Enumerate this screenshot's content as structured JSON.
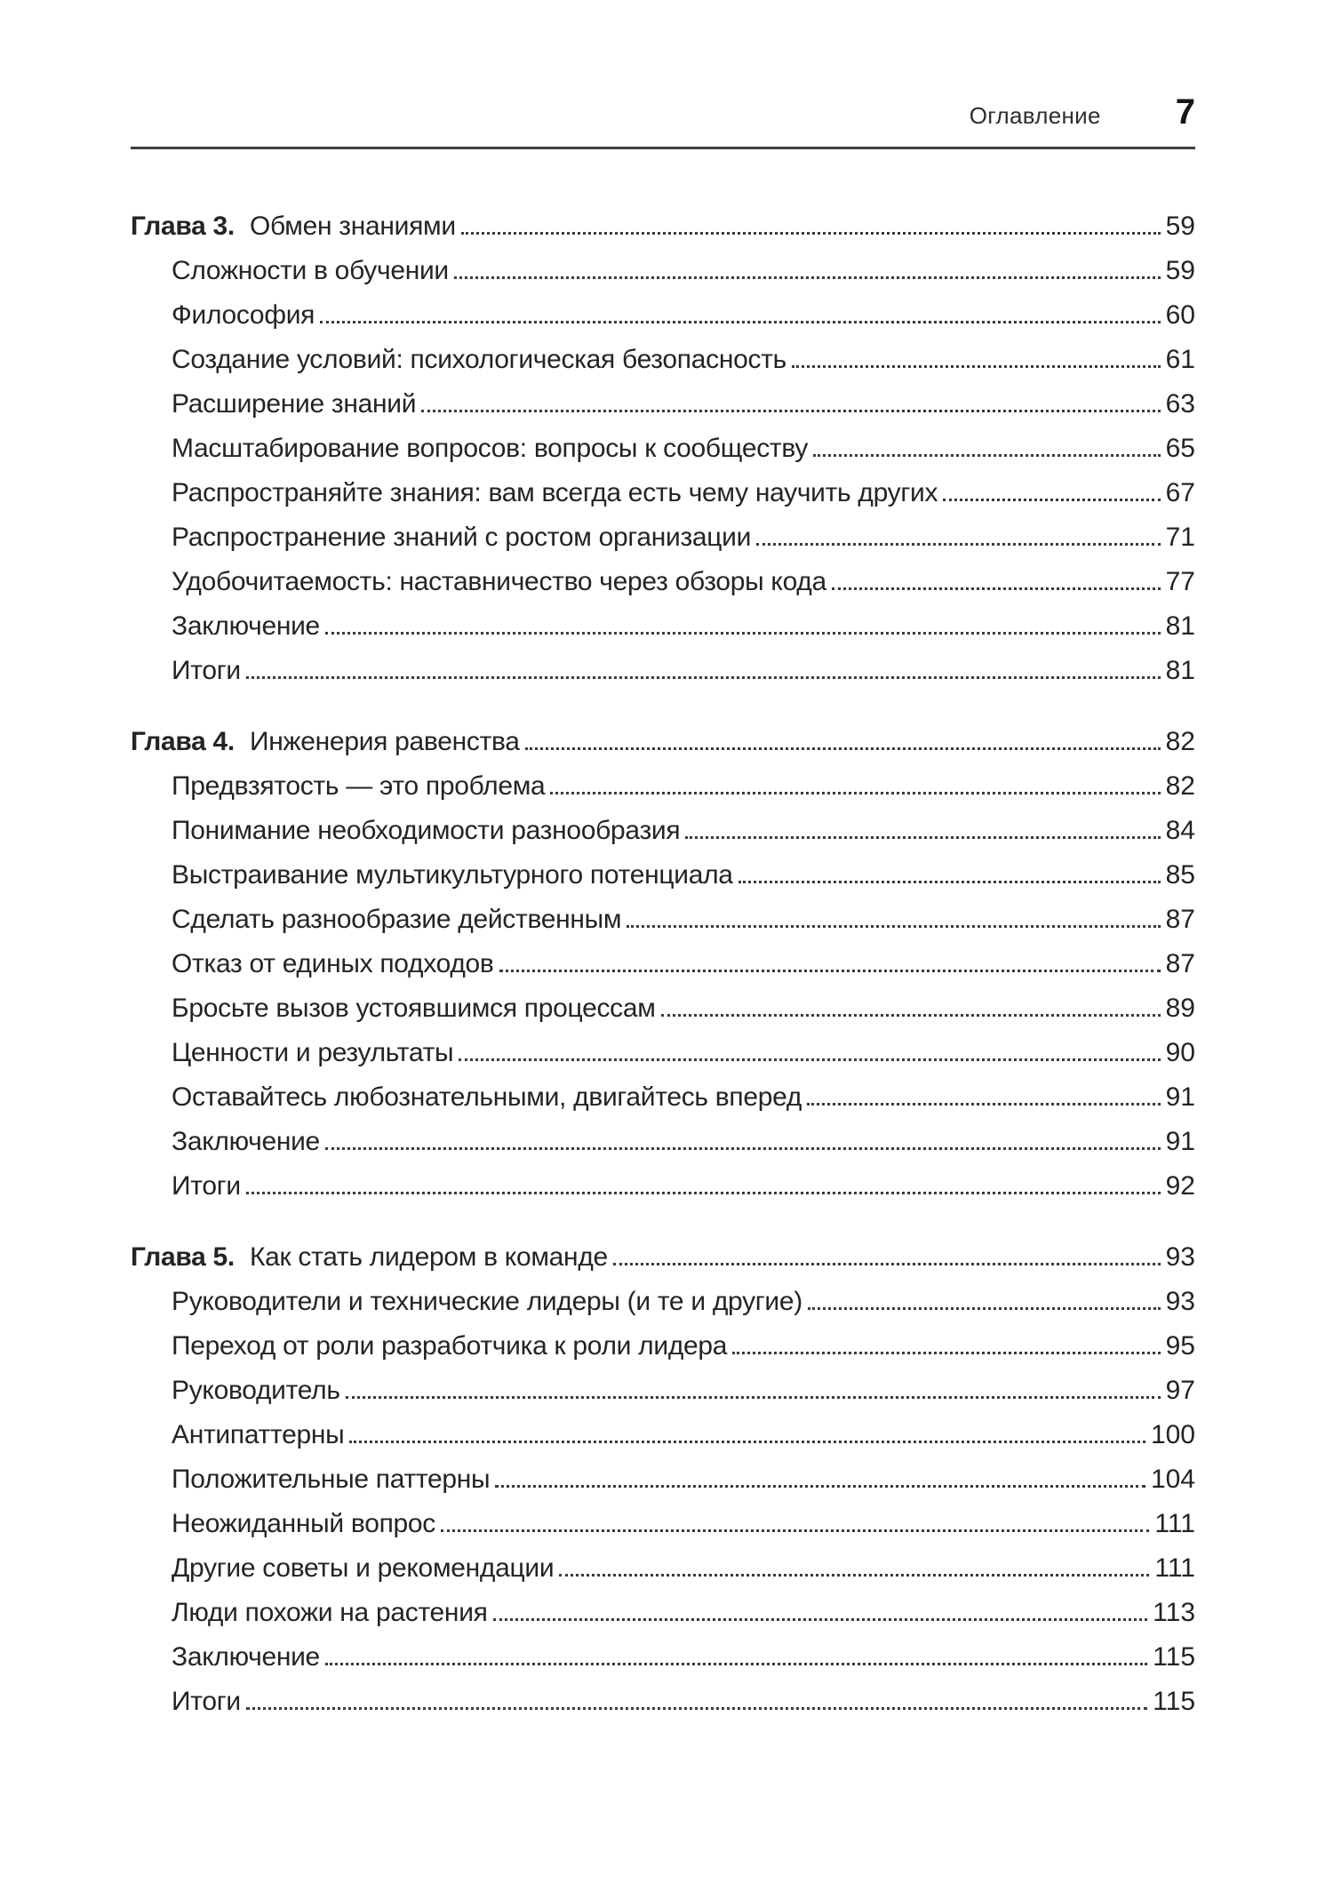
{
  "page": {
    "background": "#ffffff",
    "text_color": "#242424",
    "rule_color": "#3f3f3f"
  },
  "header": {
    "title": "Оглавление",
    "page_number": "7"
  },
  "toc": {
    "chapters": [
      {
        "label": "Глава 3.",
        "title": "Обмен знаниями",
        "page": "59",
        "items": [
          {
            "title": "Сложности в обучении",
            "page": "59"
          },
          {
            "title": "Философия",
            "page": "60"
          },
          {
            "title": "Создание условий: психологическая безопасность",
            "page": "61"
          },
          {
            "title": "Расширение знаний",
            "page": "63"
          },
          {
            "title": "Масштабирование вопросов: вопросы к сообществу",
            "page": "65"
          },
          {
            "title": "Распространяйте знания: вам всегда есть чему научить других",
            "page": "67"
          },
          {
            "title": "Распространение знаний с ростом организации",
            "page": "71"
          },
          {
            "title": "Удобочитаемость: наставничество через обзоры кода",
            "page": "77"
          },
          {
            "title": "Заключение",
            "page": "81"
          },
          {
            "title": "Итоги",
            "page": "81"
          }
        ]
      },
      {
        "label": "Глава 4.",
        "title": "Инженерия равенства",
        "page": "82",
        "items": [
          {
            "title": "Предвзятость — это проблема",
            "page": "82"
          },
          {
            "title": "Понимание необходимости разнообразия",
            "page": "84"
          },
          {
            "title": "Выстраивание мультикультурного потенциала",
            "page": "85"
          },
          {
            "title": "Сделать разнообразие действенным",
            "page": "87"
          },
          {
            "title": "Отказ от единых подходов",
            "page": "87"
          },
          {
            "title": "Бросьте вызов устоявшимся процессам",
            "page": "89"
          },
          {
            "title": "Ценности и результаты",
            "page": "90"
          },
          {
            "title": "Оставайтесь любознательными, двигайтесь вперед",
            "page": "91"
          },
          {
            "title": "Заключение",
            "page": "91"
          },
          {
            "title": "Итоги",
            "page": "92"
          }
        ]
      },
      {
        "label": "Глава 5.",
        "title": "Как стать лидером в команде",
        "page": "93",
        "items": [
          {
            "title": "Руководители и технические лидеры (и те и другие)",
            "page": "93"
          },
          {
            "title": "Переход от роли разработчика к роли лидера",
            "page": "95"
          },
          {
            "title": "Руководитель",
            "page": "97"
          },
          {
            "title": "Антипаттерны",
            "page": "100"
          },
          {
            "title": "Положительные паттерны",
            "page": "104"
          },
          {
            "title": "Неожиданный вопрос",
            "page": "111"
          },
          {
            "title": "Другие советы и рекомендации",
            "page": "111"
          },
          {
            "title": "Люди похожи на растения",
            "page": "113"
          },
          {
            "title": "Заключение",
            "page": "115"
          },
          {
            "title": "Итоги",
            "page": "115"
          }
        ]
      }
    ]
  }
}
